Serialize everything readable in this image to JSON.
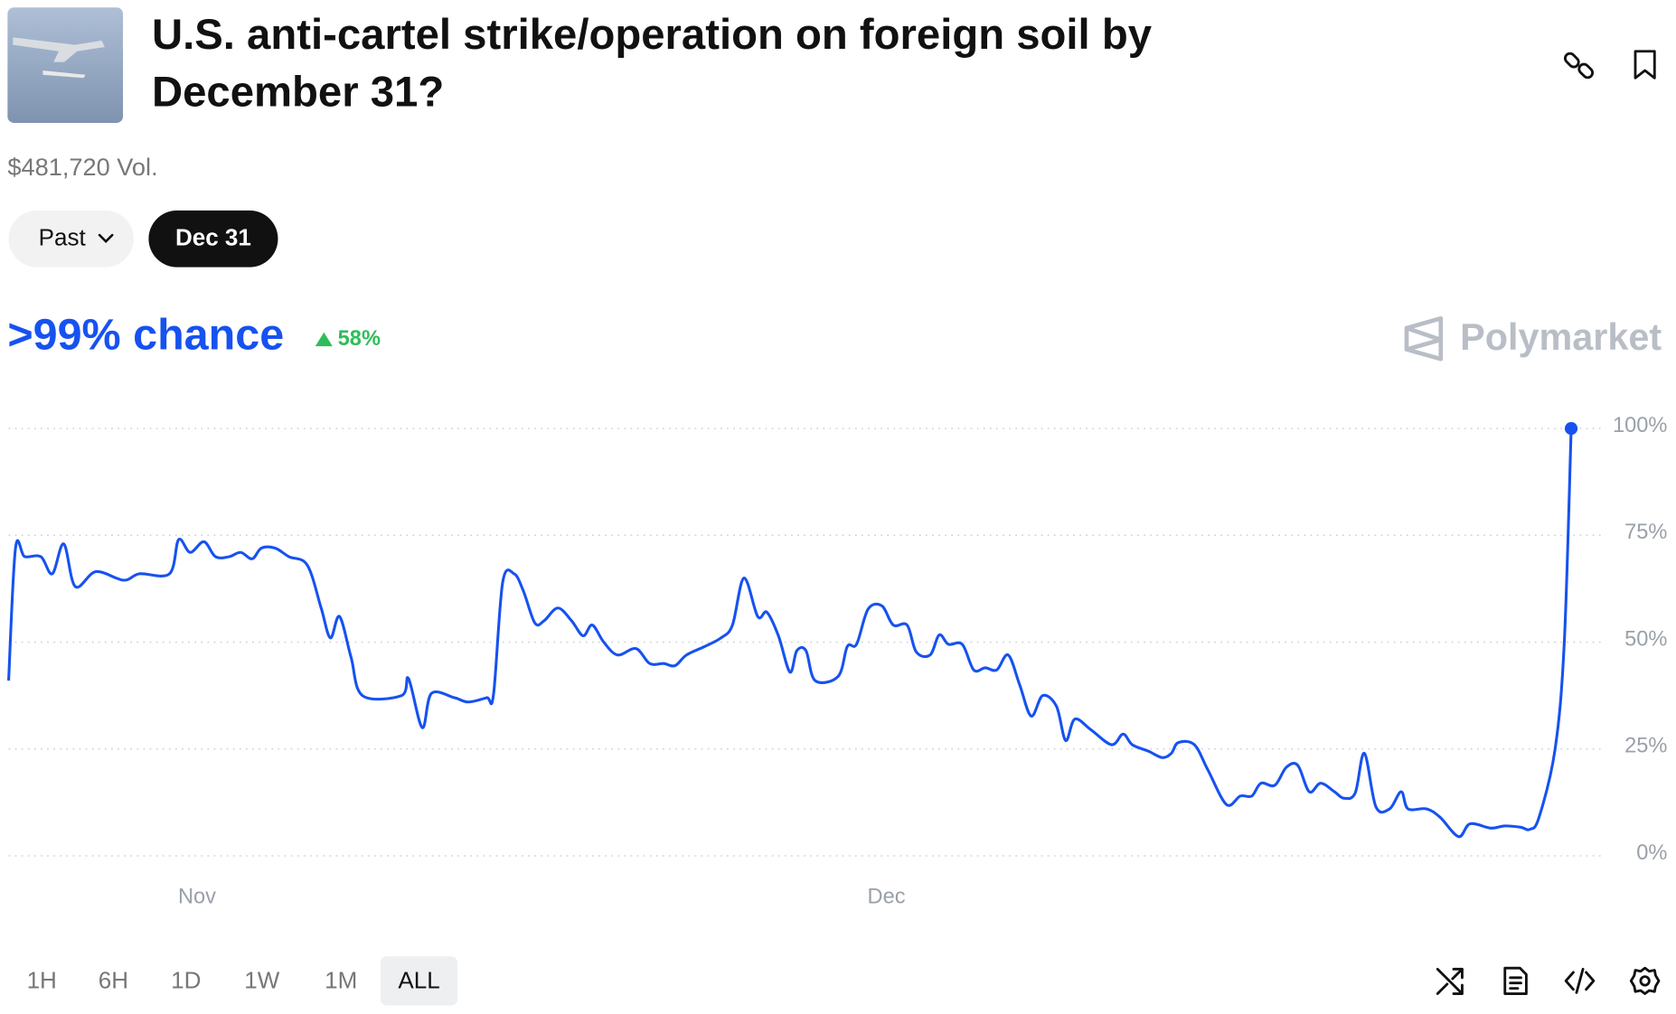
{
  "header": {
    "title_lines": [
      "U.S. anti-cartel strike/operation on foreign soil by",
      "December 31?"
    ],
    "volume": "$481,720 Vol."
  },
  "filters": {
    "options": [
      "Past",
      "Dec 31"
    ],
    "selected": 1
  },
  "summary": {
    "chance": ">99% chance",
    "change": "58%",
    "change_direction": "up",
    "brand": "Polymarket"
  },
  "chart_data": {
    "type": "line",
    "color": "#1652f0",
    "x": [
      0,
      0.3,
      0.7,
      1.4,
      1.9,
      2.4,
      2.9,
      3.8,
      5.0,
      5.7,
      7.0,
      7.4,
      7.9,
      8.5,
      9.0,
      9.6,
      10.1,
      10.6,
      11.0,
      11.6,
      12.2,
      13.0,
      13.6,
      14.0,
      14.4,
      14.9,
      15.4,
      17.1,
      17.4,
      18.0,
      18.4,
      19.4,
      20.0,
      20.8,
      21.1,
      21.5,
      22.0,
      22.4,
      22.9,
      23.3,
      23.9,
      24.5,
      25.0,
      25.4,
      25.9,
      26.5,
      27.3,
      27.9,
      28.5,
      29.0,
      29.5,
      30.3,
      31.0,
      31.5,
      32.0,
      32.6,
      33.0,
      33.5,
      34.0,
      34.3,
      34.7,
      35.1,
      36.1,
      36.5,
      36.9,
      37.4,
      38.0,
      38.5,
      39.1,
      39.5,
      40.1,
      40.5,
      40.9,
      41.5,
      42.0,
      42.5,
      43.0,
      43.5,
      44.0,
      44.5,
      45.0,
      45.6,
      46.0,
      46.4,
      47.1,
      48.0,
      48.5,
      48.9,
      49.6,
      50.2,
      50.6,
      50.9,
      51.6,
      52.2,
      53.0,
      53.6,
      54.1,
      54.5,
      55.1,
      55.6,
      56.1,
      56.6,
      57.1,
      57.7,
      58.1,
      58.6,
      59.0,
      59.5,
      60.1,
      60.6,
      60.9,
      61.7,
      62.3,
      63.1,
      63.6,
      64.5,
      65.1,
      65.8,
      66.2,
      66.6,
      67.3,
      67.7,
      68.0
    ],
    "values": [
      41,
      72,
      70,
      70,
      66,
      73,
      63,
      66.5,
      64.5,
      66,
      66,
      74,
      71,
      73.5,
      70,
      70,
      71,
      69.5,
      72,
      72,
      70,
      68,
      58,
      51,
      56,
      46.5,
      37.5,
      37.5,
      41.5,
      30,
      38,
      37,
      36,
      37,
      37.7,
      64,
      66,
      62,
      54.5,
      55,
      58,
      55,
      51.5,
      54,
      50,
      47,
      48.5,
      45,
      45,
      44.5,
      47,
      49,
      51,
      54,
      65,
      56,
      57,
      51.5,
      43,
      48,
      48,
      41,
      42,
      49,
      49.5,
      57.7,
      58.5,
      54,
      54,
      47.7,
      47,
      51.7,
      49.5,
      49.5,
      43.5,
      44,
      43.5,
      47,
      40,
      32.7,
      37.5,
      35,
      27,
      32,
      29.5,
      26,
      28.5,
      26,
      24.5,
      23,
      24,
      26.5,
      26,
      20,
      12,
      14,
      14,
      17,
      16.5,
      20.7,
      21.2,
      15,
      17,
      15,
      13.5,
      14.7,
      24,
      11.5,
      11,
      15,
      11,
      11,
      9,
      4.5,
      7.5,
      6.5,
      7,
      6.7,
      6.2,
      9,
      25,
      50,
      100
    ],
    "xlim": [
      0,
      68
    ],
    "xticks": [
      {
        "value": 8.2,
        "label": "Nov"
      },
      {
        "value": 38.2,
        "label": "Dec"
      }
    ],
    "ylim": [
      0,
      100
    ],
    "yticks": [
      {
        "value": 0,
        "label": "0%"
      },
      {
        "value": 25,
        "label": "25%"
      },
      {
        "value": 50,
        "label": "50%"
      },
      {
        "value": 75,
        "label": "75%"
      },
      {
        "value": 100,
        "label": "100%"
      }
    ],
    "grid": true
  },
  "time_ranges": {
    "options": [
      "1H",
      "6H",
      "1D",
      "1W",
      "1M",
      "ALL"
    ],
    "selected": 5
  }
}
